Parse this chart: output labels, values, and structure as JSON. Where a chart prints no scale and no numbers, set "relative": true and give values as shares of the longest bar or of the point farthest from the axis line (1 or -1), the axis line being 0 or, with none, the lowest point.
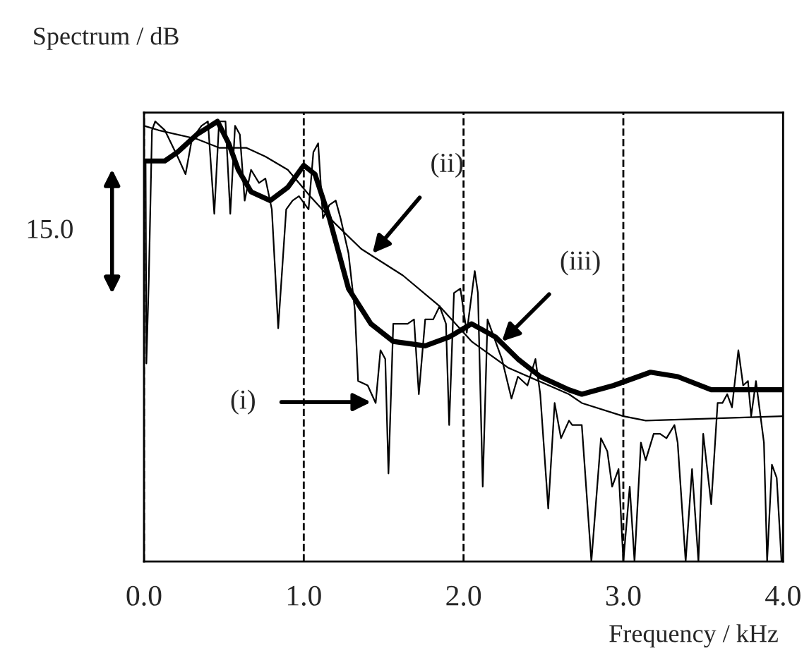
{
  "chart_data": {
    "type": "line",
    "relative": true,
    "ylabel": "Spectrum / dB",
    "xlabel": "Frequency / kHz",
    "xlim": [
      0,
      4
    ],
    "xticks": [
      {
        "value": 0,
        "label": "0.0"
      },
      {
        "value": 1,
        "label": "1.0"
      },
      {
        "value": 2,
        "label": "2.0"
      },
      {
        "value": 3,
        "label": "3.0"
      },
      {
        "value": 4,
        "label": "4.0"
      }
    ],
    "grid": true,
    "series": [
      {
        "color": "#000000",
        "x": [
          0.01,
          0.015,
          0.03,
          0.05,
          0.07,
          0.13,
          0.17,
          0.21,
          0.26,
          0.3,
          0.36,
          0.4,
          0.44,
          0.47,
          0.51,
          0.54,
          0.57,
          0.6,
          0.63,
          0.67,
          0.72,
          0.76,
          0.8,
          0.84,
          0.89,
          0.93,
          0.97,
          1.03,
          1.06,
          1.09,
          1.12,
          1.16,
          1.2,
          1.23,
          1.28,
          1.32,
          1.34,
          1.4,
          1.45,
          1.48,
          1.51,
          1.53,
          1.56,
          1.61,
          1.65,
          1.69,
          1.72,
          1.76,
          1.81,
          1.85,
          1.89,
          1.91,
          1.94,
          1.98,
          2.02,
          2.07,
          2.09,
          2.12,
          2.15,
          2.2,
          2.24,
          2.3,
          2.34,
          2.4,
          2.45,
          2.48,
          2.53,
          2.57,
          2.61,
          2.66,
          2.68,
          2.74,
          2.8,
          2.86,
          2.9,
          2.93,
          2.97,
          3.0,
          3.04,
          3.07,
          3.11,
          3.14,
          3.19,
          3.23,
          3.27,
          3.32,
          3.34,
          3.39,
          3.43,
          3.47,
          3.5,
          3.55,
          3.59,
          3.62,
          3.65,
          3.68,
          3.72,
          3.75,
          3.78,
          3.8,
          3.83,
          3.88,
          3.9,
          3.93,
          3.96,
          3.99
        ],
        "values": [
          0.91,
          0.45,
          0.64,
          0.98,
          1.0,
          0.98,
          0.95,
          0.92,
          0.88,
          0.96,
          0.99,
          1.0,
          0.79,
          1.0,
          1.0,
          0.79,
          0.99,
          0.97,
          0.82,
          0.89,
          0.86,
          0.87,
          0.8,
          0.53,
          0.8,
          0.82,
          0.83,
          0.8,
          0.93,
          0.95,
          0.78,
          0.81,
          0.82,
          0.78,
          0.7,
          0.57,
          0.41,
          0.4,
          0.36,
          0.48,
          0.46,
          0.2,
          0.54,
          0.54,
          0.54,
          0.55,
          0.38,
          0.55,
          0.55,
          0.58,
          0.54,
          0.31,
          0.61,
          0.62,
          0.52,
          0.66,
          0.61,
          0.17,
          0.55,
          0.5,
          0.46,
          0.37,
          0.42,
          0.4,
          0.46,
          0.38,
          0.12,
          0.36,
          0.28,
          0.32,
          0.31,
          0.31,
          0.0,
          0.28,
          0.25,
          0.17,
          0.21,
          0.0,
          0.17,
          0.0,
          0.27,
          0.23,
          0.29,
          0.29,
          0.28,
          0.31,
          0.27,
          0.0,
          0.21,
          0.0,
          0.29,
          0.13,
          0.36,
          0.36,
          0.38,
          0.35,
          0.48,
          0.4,
          0.41,
          0.33,
          0.41,
          0.27,
          0.0,
          0.22,
          0.19,
          0.0
        ]
      },
      {
        "color": "#000000",
        "x": [
          0,
          0.09,
          0.33,
          0.47,
          0.64,
          0.76,
          0.9,
          1.04,
          1.19,
          1.36,
          1.62,
          1.85,
          2.05,
          2.28,
          2.66,
          2.74,
          3.0,
          3.14,
          4.0
        ],
        "values": [
          0.99,
          0.98,
          0.96,
          0.94,
          0.94,
          0.92,
          0.89,
          0.83,
          0.77,
          0.71,
          0.65,
          0.58,
          0.5,
          0.44,
          0.38,
          0.36,
          0.33,
          0.32,
          0.33
        ]
      },
      {
        "color": "#000000",
        "x": [
          0,
          0.13,
          0.21,
          0.33,
          0.46,
          0.53,
          0.59,
          0.67,
          0.79,
          0.9,
          1.0,
          1.07,
          1.16,
          1.28,
          1.42,
          1.56,
          1.76,
          1.91,
          2.05,
          2.2,
          2.34,
          2.48,
          2.66,
          2.74,
          2.94,
          3.17,
          3.34,
          3.55,
          4.0
        ],
        "values": [
          0.91,
          0.91,
          0.93,
          0.97,
          1.0,
          0.95,
          0.89,
          0.84,
          0.82,
          0.85,
          0.9,
          0.88,
          0.78,
          0.62,
          0.54,
          0.5,
          0.49,
          0.51,
          0.54,
          0.51,
          0.46,
          0.42,
          0.39,
          0.38,
          0.4,
          0.43,
          0.42,
          0.39,
          0.39
        ]
      }
    ],
    "annotations": [
      "15.0",
      "(i)",
      {
        "text": "(ii)",
        "x": 1.43,
        "y": 0.7
      },
      {
        "text": "(iii)",
        "x": 2.24,
        "y": 0.5
      }
    ]
  }
}
